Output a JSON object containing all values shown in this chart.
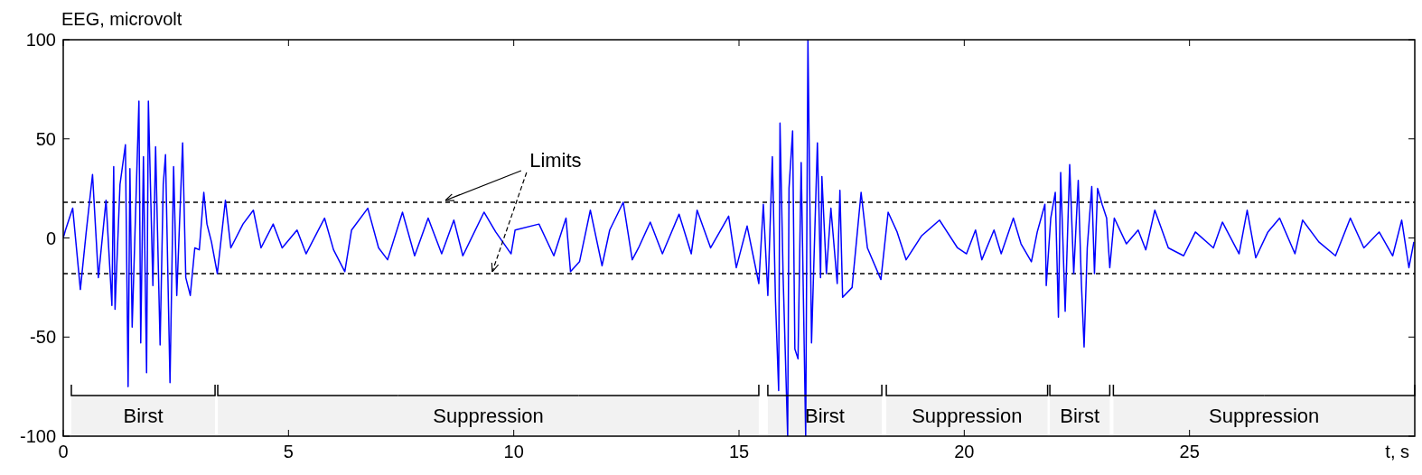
{
  "chart_data": {
    "type": "line",
    "ylabel": "EEG, microvolt",
    "xlabel": "t, s",
    "xlim": [
      0,
      30
    ],
    "ylim": [
      -100,
      100
    ],
    "xticks": [
      0,
      5,
      10,
      15,
      20,
      25
    ],
    "yticks": [
      -100,
      -50,
      0,
      50,
      100
    ],
    "line_style": "solid",
    "series": [
      {
        "color": "#0000ff",
        "x": [
          0,
          0.05,
          0.21,
          0.38,
          0.51,
          0.65,
          0.78,
          0.95,
          1.08,
          1.12,
          1.15,
          1.26,
          1.38,
          1.44,
          1.48,
          1.53,
          1.68,
          1.72,
          1.78,
          1.85,
          1.89,
          1.99,
          2.05,
          2.15,
          2.22,
          2.27,
          2.37,
          2.42,
          2.45,
          2.52,
          2.65,
          2.72,
          2.82,
          2.92,
          3.02,
          3.12,
          3.19,
          3.29,
          3.42,
          3.6,
          3.72,
          3.99,
          4.22,
          4.39,
          4.66,
          4.86,
          5.19,
          5.39,
          5.8,
          6.0,
          6.25,
          6.4,
          6.76,
          7.0,
          7.2,
          7.53,
          7.8,
          8.1,
          8.4,
          8.67,
          8.87,
          9.34,
          9.6,
          9.94,
          10.03,
          10.56,
          10.89,
          11.16,
          11.26,
          11.46,
          11.7,
          11.96,
          12.13,
          12.43,
          12.63,
          12.77,
          13.03,
          13.3,
          13.67,
          13.94,
          14.07,
          14.37,
          14.77,
          14.94,
          15.18,
          15.44,
          15.54,
          15.64,
          15.74,
          15.81,
          15.88,
          15.91,
          15.98,
          16.08,
          16.11,
          16.19,
          16.24,
          16.31,
          16.38,
          16.48,
          16.53,
          16.61,
          16.74,
          16.81,
          16.84,
          16.94,
          17.04,
          17.18,
          17.24,
          17.3,
          17.51,
          17.71,
          17.85,
          18.15,
          18.31,
          18.51,
          18.71,
          19.05,
          19.45,
          19.85,
          20.05,
          20.25,
          20.39,
          20.66,
          20.82,
          21.09,
          21.26,
          21.49,
          21.62,
          21.79,
          21.82,
          21.92,
          22.02,
          22.09,
          22.14,
          22.24,
          22.34,
          22.43,
          22.53,
          22.6,
          22.66,
          22.73,
          22.83,
          22.89,
          22.96,
          23.06,
          23.16,
          23.23,
          23.33,
          23.6,
          23.86,
          24.03,
          24.23,
          24.53,
          24.87,
          25.13,
          25.53,
          25.73,
          26.1,
          26.28,
          26.47,
          26.74,
          27.0,
          27.34,
          27.51,
          27.87,
          28.24,
          28.57,
          28.87,
          29.21,
          29.51,
          29.71,
          29.87,
          29.98
        ],
        "values": [
          0,
          4,
          15,
          -26,
          3,
          32,
          -20,
          19,
          -34,
          36,
          -36,
          27,
          47,
          -75,
          35,
          -45,
          69,
          -53,
          41,
          -68,
          69,
          -24,
          46,
          -54,
          27,
          42,
          -73,
          -5,
          36,
          -29,
          48,
          -20,
          -29,
          -5,
          -6,
          23,
          7,
          -2,
          -18,
          19,
          -5,
          7,
          14,
          -5,
          7,
          -5,
          4,
          -8,
          10,
          -6,
          -17,
          4,
          15,
          -5,
          -11,
          13,
          -9,
          10,
          -8,
          9,
          -9,
          13,
          3,
          -8,
          4,
          7,
          -9,
          10,
          -17,
          -12,
          14,
          -14,
          4,
          18,
          -11,
          -5,
          8,
          -8,
          12,
          -8,
          14,
          -5,
          11,
          -15,
          6,
          -23,
          17,
          -29,
          41,
          -32,
          -77,
          58,
          -20,
          -100,
          25,
          54,
          -56,
          -61,
          38,
          -100,
          100,
          -53,
          48,
          -20,
          31,
          -18,
          15,
          -23,
          24,
          -30,
          -25,
          23,
          -5,
          -21,
          13,
          3,
          -11,
          1,
          9,
          -5,
          -8,
          4,
          -11,
          4,
          -8,
          10,
          -3,
          -12,
          3,
          17,
          -24,
          10,
          23,
          -40,
          33,
          -37,
          37,
          -18,
          29,
          -23,
          -55,
          -5,
          26,
          -18,
          25,
          17,
          10,
          -15,
          10,
          -3,
          4,
          -6,
          14,
          -5,
          -9,
          3,
          -5,
          8,
          -8,
          14,
          -10,
          3,
          10,
          -8,
          9,
          -2,
          -9,
          10,
          -5,
          3,
          -9,
          9,
          -15,
          -2
        ]
      }
    ],
    "ref_lines": [
      {
        "axis": "y",
        "value": 18,
        "color": "#000000",
        "line_style": "dashed"
      },
      {
        "axis": "y",
        "value": -18,
        "color": "#000000",
        "line_style": "dashed"
      }
    ],
    "bands": [
      {
        "axis": "x",
        "from": 0.18,
        "to": 3.37,
        "label": "Birst"
      },
      {
        "axis": "x",
        "from": 3.43,
        "to": 15.44,
        "label": "Suppression"
      },
      {
        "axis": "x",
        "from": 15.64,
        "to": 18.17,
        "label": "Birst"
      },
      {
        "axis": "x",
        "from": 18.27,
        "to": 21.85,
        "label": "Suppression"
      },
      {
        "axis": "x",
        "from": 21.9,
        "to": 23.23,
        "label": "Birst"
      },
      {
        "axis": "x",
        "from": 23.31,
        "to": 30,
        "label": "Suppression"
      }
    ],
    "annotations": [
      {
        "text": "Limits",
        "x": 8.48,
        "y": 18
      }
    ]
  }
}
